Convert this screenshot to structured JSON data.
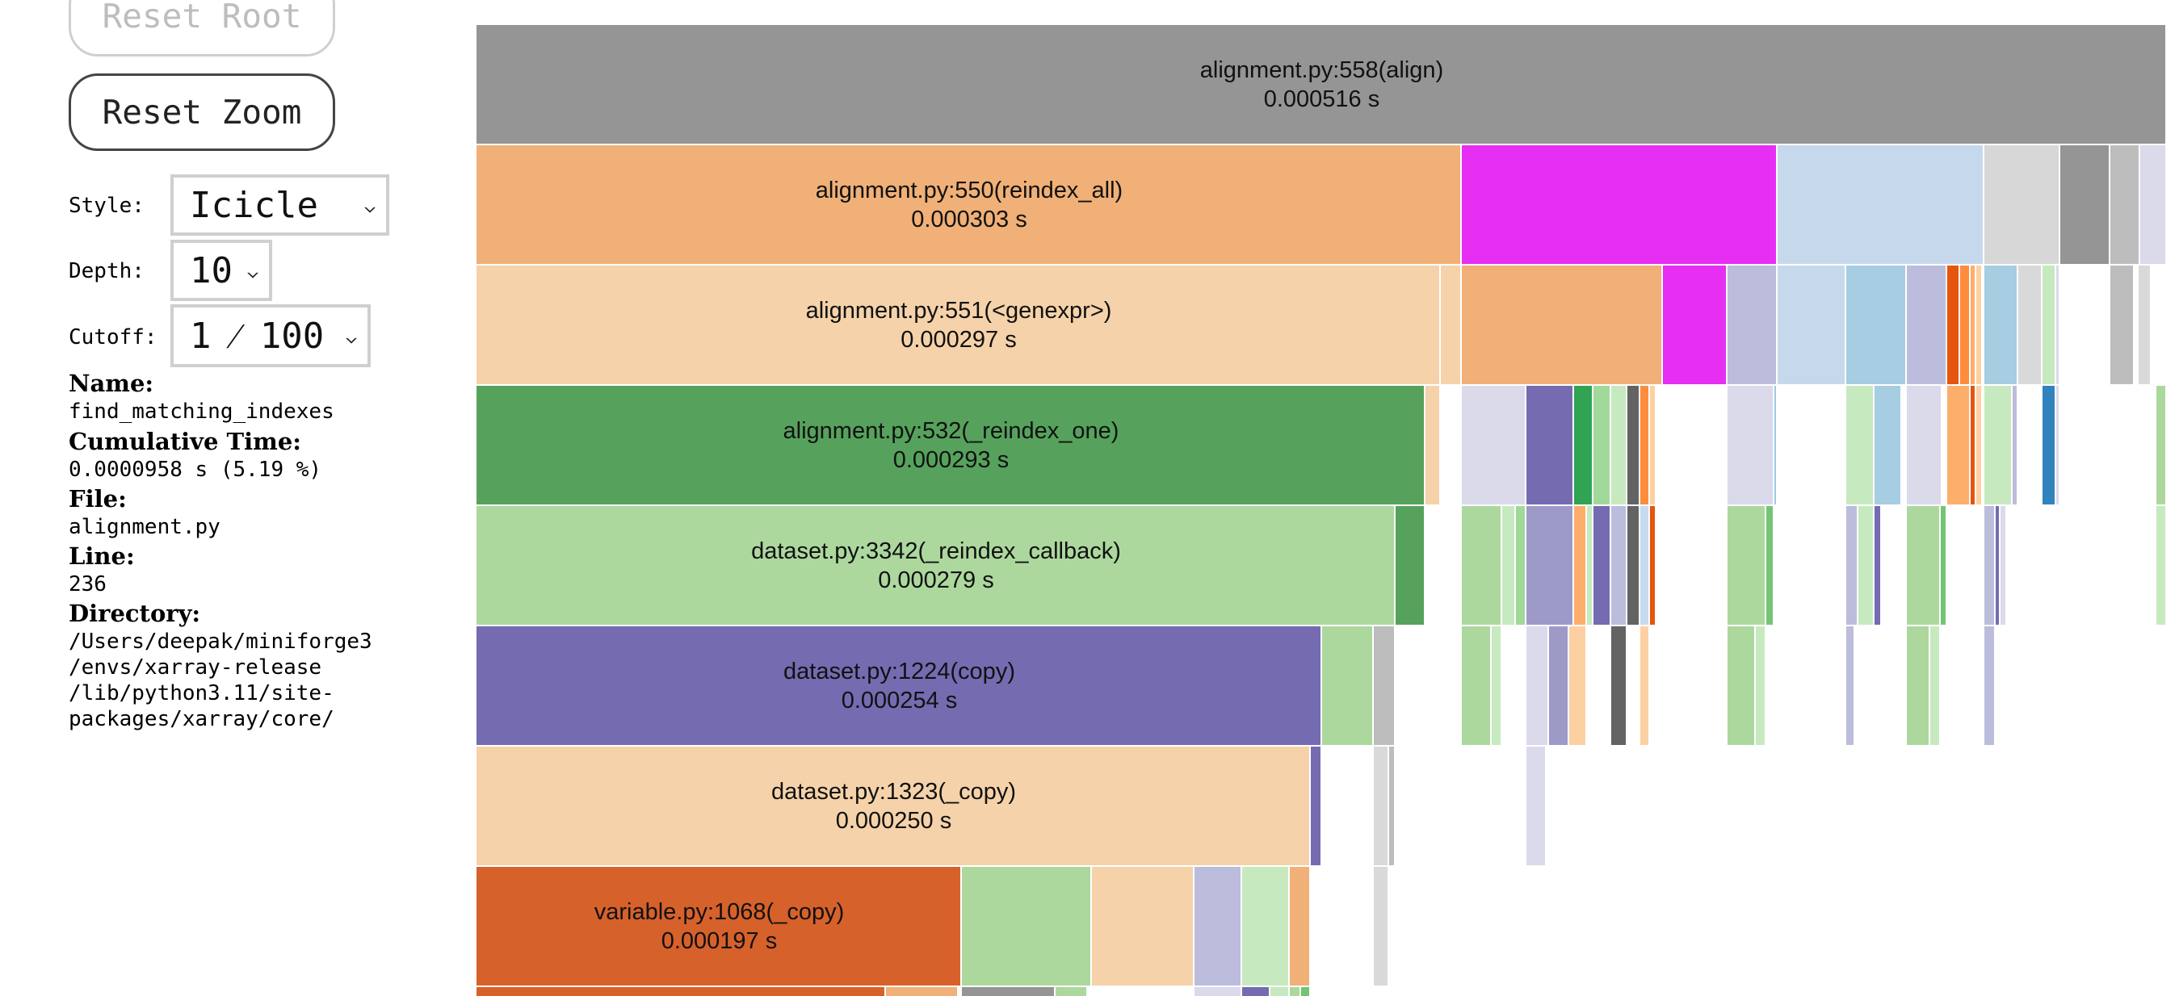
{
  "controls": {
    "reset_root_label": "Reset Root",
    "reset_zoom_label": "Reset Zoom",
    "style_label": "Style:",
    "style_value": "Icicle",
    "depth_label": "Depth:",
    "depth_value": "10",
    "cutoff_label": "Cutoff:",
    "cutoff_value": "1 ⁄ 100"
  },
  "info": {
    "name_label": "Name:",
    "name_value": "find_matching_indexes",
    "cumulative_label": "Cumulative Time:",
    "cumulative_value": "0.0000958 s (5.19 %)",
    "file_label": "File:",
    "file_value": "alignment.py",
    "line_label": "Line:",
    "line_value": "236",
    "directory_label": "Directory:",
    "directory_lines": [
      "/Users/deepak/miniforge3",
      "/envs/xarray-release",
      "/lib/python3.11/site-",
      "packages/xarray/core/"
    ]
  },
  "labeled_frames": [
    {
      "name": "alignment.py:558(align)",
      "time": "0.000516 s",
      "color": "#959595"
    },
    {
      "name": "alignment.py:550(reindex_all)",
      "time": "0.000303 s",
      "color": "#f0b077"
    },
    {
      "name": "alignment.py:551(<genexpr>)",
      "time": "0.000297 s",
      "color": "#f5d2a9"
    },
    {
      "name": "alignment.py:532(_reindex_one)",
      "time": "0.000293 s",
      "color": "#56a25c"
    },
    {
      "name": "dataset.py:3342(_reindex_callback)",
      "time": "0.000279 s",
      "color": "#acd89e"
    },
    {
      "name": "dataset.py:1224(copy)",
      "time": "0.000254 s",
      "color": "#756bb1"
    },
    {
      "name": "dataset.py:1323(_copy)",
      "time": "0.000250 s",
      "color": "#f5d2a9"
    },
    {
      "name": "variable.py:1068(_copy)",
      "time": "0.000197 s",
      "color": "#d7612b"
    }
  ]
}
